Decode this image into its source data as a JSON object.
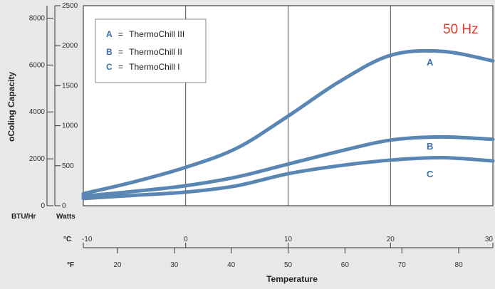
{
  "chart_data": {
    "type": "line",
    "frequency_label": "50 Hz",
    "y_axis_title": "oColing Capacity",
    "x_axis_title": "Temperature",
    "btu_unit_label": "BTU/Hr",
    "watts_unit_label": "Watts",
    "celsius_label": "°C",
    "fahrenheit_label": "°F",
    "watts_ticks": [
      0,
      500,
      1000,
      1500,
      2000,
      2500
    ],
    "btu_ticks": [
      0,
      2000,
      4000,
      6000,
      8000
    ],
    "celsius_ticks": [
      -10,
      0,
      10,
      20,
      30
    ],
    "fahrenheit_ticks": [
      20,
      30,
      40,
      50,
      60,
      70,
      80
    ],
    "x_range_c": [
      -10,
      30
    ],
    "y_range_watts": [
      0,
      2500
    ],
    "legend": [
      {
        "key": "A",
        "eq": "=",
        "name": "ThermoChill III"
      },
      {
        "key": "B",
        "eq": "=",
        "name": "ThermoChill II"
      },
      {
        "key": "C",
        "eq": "=",
        "name": "ThermoChill I"
      }
    ],
    "series": [
      {
        "name": "A",
        "color": "#5a86b4",
        "x": [
          -10,
          -5,
          0,
          5,
          10,
          15,
          20,
          25,
          30
        ],
        "y": [
          150,
          300,
          480,
          720,
          1120,
          1550,
          1880,
          1930,
          1810
        ]
      },
      {
        "name": "B",
        "color": "#5a86b4",
        "x": [
          -10,
          -5,
          0,
          5,
          10,
          15,
          20,
          25,
          30
        ],
        "y": [
          120,
          180,
          250,
          360,
          520,
          680,
          820,
          860,
          830
        ]
      },
      {
        "name": "C",
        "color": "#5a86b4",
        "x": [
          -10,
          -5,
          0,
          5,
          10,
          15,
          20,
          25,
          30
        ],
        "y": [
          90,
          130,
          170,
          250,
          400,
          500,
          570,
          600,
          560
        ]
      }
    ]
  }
}
